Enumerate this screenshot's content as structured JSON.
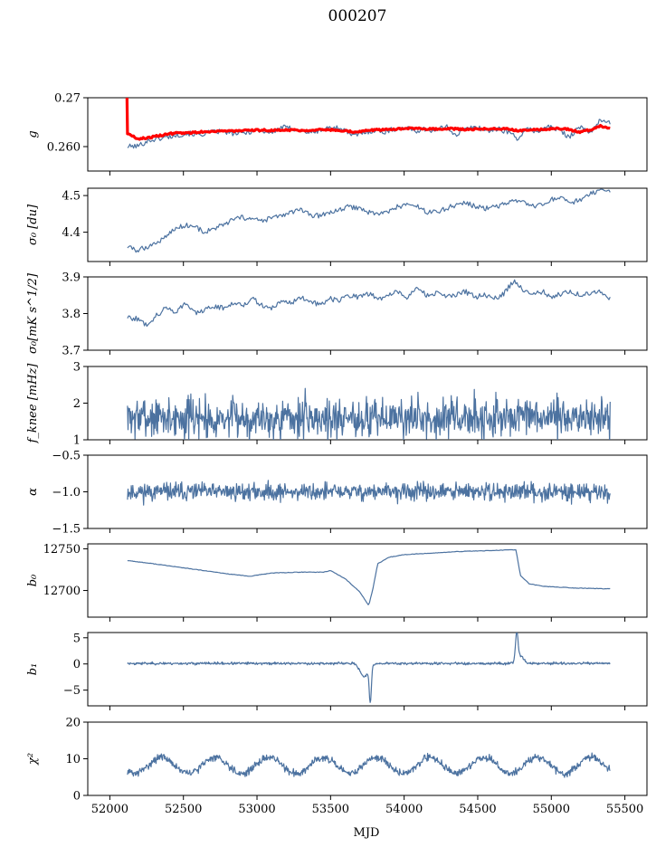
{
  "figure": {
    "title": "000207",
    "xlabel": "MJD",
    "x_ticks": [
      52000,
      52500,
      53000,
      53500,
      54000,
      54500,
      55000,
      55500
    ],
    "x_range": [
      51850,
      55650
    ],
    "series_color": "#4c72a0",
    "fit_color": "#ff0000"
  },
  "chart_data": [
    {
      "type": "line",
      "ylabel": "g",
      "ylim": [
        0.255,
        0.27
      ],
      "yticks": [
        0.26,
        0.27
      ],
      "ytick_labels": [
        "0.260",
        "0.27"
      ],
      "x_start": 52120,
      "x_end": 55400,
      "series": [
        {
          "values": [
            0.26,
            0.2601,
            0.2612,
            0.2616,
            0.262,
            0.2624,
            0.2627,
            0.2624,
            0.2629,
            0.2631,
            0.2628,
            0.2626,
            0.2631,
            0.2633,
            0.2628,
            0.264,
            0.2637,
            0.2632,
            0.2628,
            0.2635,
            0.264,
            0.2636,
            0.2621,
            0.2629,
            0.2633,
            0.263,
            0.2636,
            0.2638,
            0.2632,
            0.2636,
            0.2631,
            0.2642,
            0.2624,
            0.2637,
            0.264,
            0.2632,
            0.2636,
            0.2631,
            0.2617,
            0.2636,
            0.2631,
            0.2641,
            0.2634,
            0.262,
            0.264,
            0.2629,
            0.2653,
            0.2648
          ]
        },
        {
          "name": "fit",
          "values": [
            0.2627,
            0.2616,
            0.2618,
            0.2622,
            0.2626,
            0.2628,
            0.2628,
            0.263,
            0.2631,
            0.2632,
            0.2632,
            0.2632,
            0.2633,
            0.2634,
            0.2633,
            0.2634,
            0.2634,
            0.2633,
            0.2634,
            0.2635,
            0.2634,
            0.2633,
            0.263,
            0.2632,
            0.2634,
            0.2635,
            0.2636,
            0.2637,
            0.2637,
            0.2636,
            0.2636,
            0.2637,
            0.2636,
            0.2635,
            0.2636,
            0.2636,
            0.2637,
            0.2636,
            0.2633,
            0.2634,
            0.2635,
            0.2636,
            0.2637,
            0.2635,
            0.263,
            0.2634,
            0.2642,
            0.2638
          ]
        }
      ]
    },
    {
      "type": "line",
      "ylabel": "σ₀ [du]",
      "ylim": [
        4.32,
        4.52
      ],
      "yticks": [
        4.4,
        4.5
      ],
      "ytick_labels": [
        "4.4",
        "4.5"
      ],
      "x_start": 52120,
      "x_end": 55400,
      "series": [
        {
          "values": [
            4.36,
            4.35,
            4.36,
            4.37,
            4.39,
            4.41,
            4.42,
            4.415,
            4.4,
            4.41,
            4.42,
            4.435,
            4.44,
            4.435,
            4.43,
            4.44,
            4.445,
            4.455,
            4.46,
            4.445,
            4.445,
            4.455,
            4.46,
            4.47,
            4.465,
            4.455,
            4.45,
            4.455,
            4.47,
            4.475,
            4.47,
            4.455,
            4.455,
            4.465,
            4.475,
            4.48,
            4.47,
            4.465,
            4.47,
            4.475,
            4.485,
            4.48,
            4.47,
            4.475,
            4.49,
            4.49,
            4.48,
            4.49,
            4.505,
            4.51,
            4.515
          ]
        }
      ]
    },
    {
      "type": "line",
      "ylabel": "σ₀[mK s^1/2]",
      "ylim": [
        3.7,
        3.9
      ],
      "yticks": [
        3.7,
        3.8,
        3.9
      ],
      "ytick_labels": [
        "3.7",
        "3.8",
        "3.9"
      ],
      "x_start": 52120,
      "x_end": 55400,
      "series": [
        {
          "values": [
            3.79,
            3.785,
            3.77,
            3.795,
            3.815,
            3.805,
            3.83,
            3.8,
            3.81,
            3.82,
            3.815,
            3.83,
            3.825,
            3.84,
            3.82,
            3.815,
            3.835,
            3.83,
            3.845,
            3.83,
            3.825,
            3.84,
            3.835,
            3.85,
            3.845,
            3.855,
            3.84,
            3.85,
            3.86,
            3.845,
            3.87,
            3.85,
            3.855,
            3.845,
            3.85,
            3.86,
            3.845,
            3.85,
            3.84,
            3.855,
            3.89,
            3.865,
            3.85,
            3.86,
            3.845,
            3.855,
            3.86,
            3.85,
            3.855,
            3.86,
            3.84
          ]
        }
      ]
    },
    {
      "type": "line",
      "ylabel": "f_knee [mHz]",
      "ylim": [
        1,
        3
      ],
      "yticks": [
        1,
        2,
        3
      ],
      "ytick_labels": [
        "1",
        "2",
        "3"
      ],
      "x_start": 52120,
      "x_end": 55400,
      "noise": {
        "mean": 1.6,
        "amplitude": 0.28,
        "seed": 7
      }
    },
    {
      "type": "line",
      "ylabel": "α",
      "ylim": [
        -1.5,
        -0.5
      ],
      "yticks": [
        -1.5,
        -1.0,
        -0.5
      ],
      "ytick_labels": [
        "−1.5",
        "−1.0",
        "−0.5"
      ],
      "x_start": 52120,
      "x_end": 55400,
      "noise": {
        "mean": -1.0,
        "amplitude": 0.06,
        "seed": 11
      }
    },
    {
      "type": "line",
      "ylabel": "b₀",
      "ylim": [
        12668,
        12756
      ],
      "yticks": [
        12700,
        12750
      ],
      "ytick_labels": [
        "12700",
        "12750"
      ],
      "x_start": 52120,
      "x_end": 55400,
      "points": [
        [
          52120,
          12736
        ],
        [
          52300,
          12732
        ],
        [
          52550,
          12726
        ],
        [
          52800,
          12720
        ],
        [
          52950,
          12717
        ],
        [
          53100,
          12721
        ],
        [
          53300,
          12722
        ],
        [
          53450,
          12722
        ],
        [
          53500,
          12724
        ],
        [
          53600,
          12714
        ],
        [
          53700,
          12698
        ],
        [
          53760,
          12682
        ],
        [
          53790,
          12704
        ],
        [
          53820,
          12732
        ],
        [
          53900,
          12740
        ],
        [
          54000,
          12743
        ],
        [
          54200,
          12745
        ],
        [
          54400,
          12747
        ],
        [
          54600,
          12748
        ],
        [
          54760,
          12749
        ],
        [
          54790,
          12718
        ],
        [
          54850,
          12708
        ],
        [
          54950,
          12705
        ],
        [
          55150,
          12703
        ],
        [
          55400,
          12702
        ]
      ]
    },
    {
      "type": "line",
      "ylabel": "b₁",
      "ylim": [
        -8,
        6
      ],
      "yticks": [
        -5,
        0,
        5
      ],
      "ytick_labels": [
        "−5",
        "0",
        "5"
      ],
      "x_start": 52120,
      "x_end": 55400,
      "noise": {
        "mean": 0.1,
        "amplitude": 0.12,
        "seed": 23
      },
      "events": [
        {
          "x": 53730,
          "width": 40,
          "amplitude": -2.5
        },
        {
          "x": 53770,
          "width": 10,
          "amplitude": -6.8
        },
        {
          "x": 54765,
          "width": 12,
          "amplitude": 5.5
        },
        {
          "x": 54790,
          "width": 30,
          "amplitude": 1.5
        }
      ]
    },
    {
      "type": "line",
      "ylabel": "χ²",
      "ylim": [
        0,
        20
      ],
      "yticks": [
        0,
        10,
        20
      ],
      "ytick_labels": [
        "0",
        "10",
        "20"
      ],
      "x_start": 52120,
      "x_end": 55400,
      "wave": {
        "mean": 8.2,
        "amplitude": 2.2,
        "period": 365,
        "phase": 52260,
        "noise": 0.7,
        "seed": 31
      }
    }
  ]
}
